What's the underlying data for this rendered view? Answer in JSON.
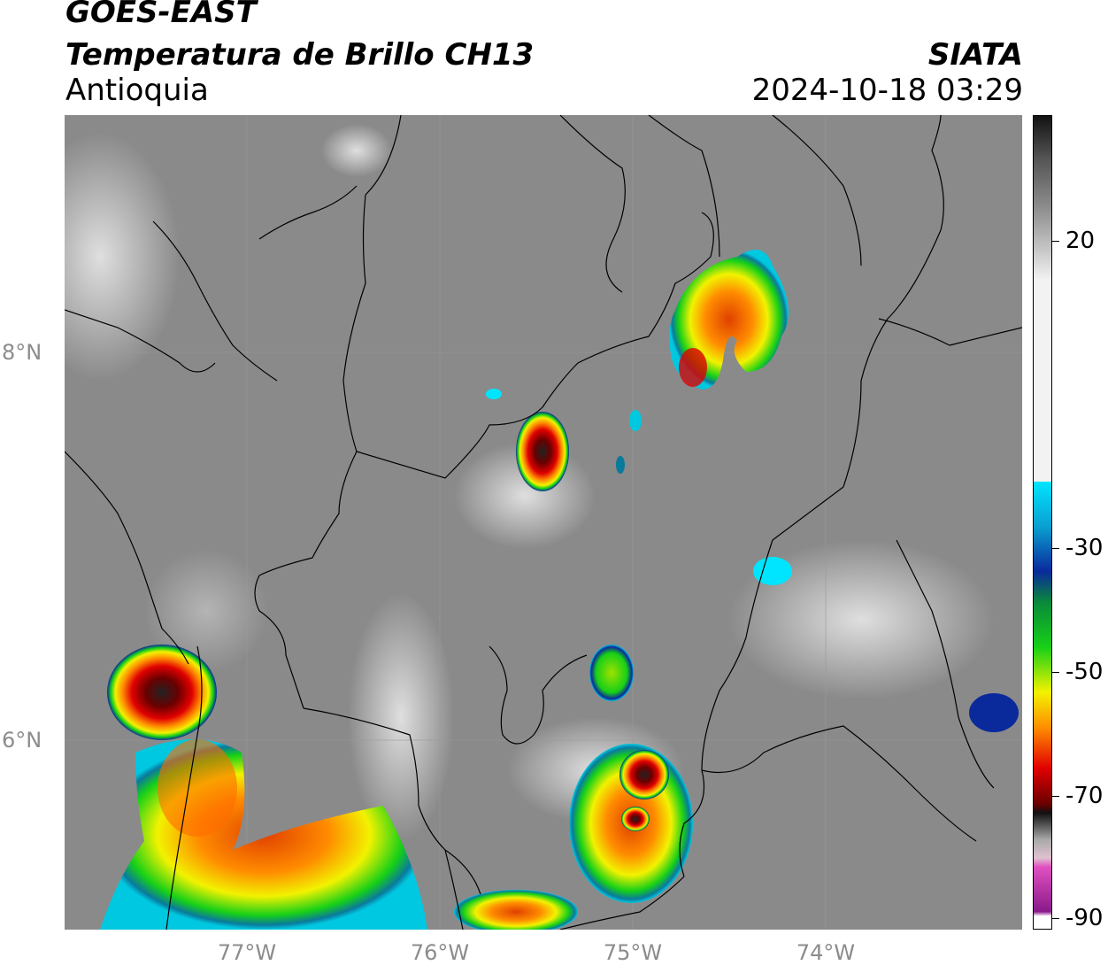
{
  "header": {
    "satellite": "GOES-EAST",
    "variable": "Temperatura de Brillo CH13",
    "region": "Antioquia",
    "organization": "SIATA",
    "datetime": "2024-10-18 03:29"
  },
  "map": {
    "lat_labels": [
      "8°N",
      "6°N"
    ],
    "lon_labels": [
      "77°W",
      "76°W",
      "75°W",
      "74°W"
    ],
    "background_gray": "#8a8a8a"
  },
  "colorbar": {
    "ticks": [
      "20",
      "-30",
      "-50",
      "-70",
      "-90"
    ],
    "colors": {
      "black": "#111111",
      "gray": "#8c8c8c",
      "white": "#f2f2f2",
      "cyan": "#00e5ff",
      "blue": "#0a2a9c",
      "green": "#17d017",
      "yellow": "#f2f200",
      "orange": "#ff8c00",
      "red": "#e00000",
      "darkred": "#6a0000",
      "magenta": "#e050c0",
      "purple": "#8a1a8a"
    }
  }
}
